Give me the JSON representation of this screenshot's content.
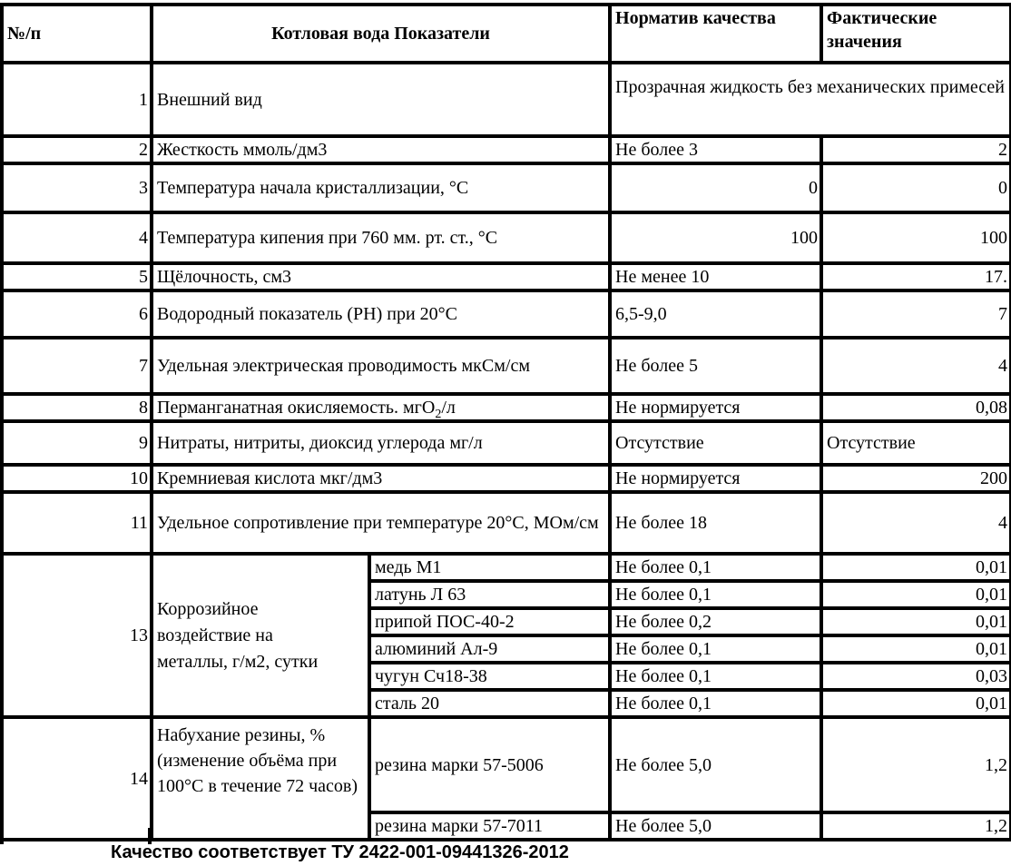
{
  "header": {
    "num": "№/п",
    "indicator": "Котловая вода   Показатели",
    "norm": "Норматив качества",
    "fact": "Фактические значения"
  },
  "rows": [
    {
      "num": "1",
      "name": "Внешний вид",
      "merged": "Прозрачная жидкость без механических примесей"
    },
    {
      "num": "2",
      "name": "Жесткость ммоль/дм3",
      "norm": "Не более 3",
      "fact": "2"
    },
    {
      "num": "3",
      "name": "Температура начала кристаллизации, °С",
      "norm": "0",
      "fact": "0"
    },
    {
      "num": "4",
      "name": "Температура кипения при 760 мм. рт. ст., °С",
      "norm": "100",
      "fact": "100"
    },
    {
      "num": "5",
      "name": "Щёлочность, см3",
      "norm": "Не менее 10",
      "fact": "17."
    },
    {
      "num": "6",
      "name": "Водородный показатель (РН) при 20°С",
      "norm": "6,5-9,0",
      "fact": "7"
    },
    {
      "num": "7",
      "name": "Удельная электрическая проводимость мкСм/см",
      "norm": "Не более 5",
      "fact": "4"
    },
    {
      "num": "8",
      "name": "Перманганатная окисляемость. мгO",
      "name_sub": "2",
      "name_tail": "/л",
      "norm": "Не нормируется",
      "fact": "0,08"
    },
    {
      "num": "9",
      "name": "Нитраты, нитриты, диоксид углерода мг/л",
      "norm": "Отсутствие",
      "fact": "Отсутствие"
    },
    {
      "num": "10",
      "name": "Кремниевая кислота мкг/дм3",
      "norm": "Не нормируется",
      "fact": "200"
    },
    {
      "num": "11",
      "name": "Удельное сопротивление при температуре 20°С, МОм/см",
      "norm": "Не более 18",
      "fact": "4"
    }
  ],
  "corrosion": {
    "num": "13",
    "name": "Коррозийное воздействие на металлы, г/м2, сутки",
    "items": [
      {
        "metal": "медь М1",
        "norm": "Не более 0,1",
        "fact": "0,01"
      },
      {
        "metal": "латунь Л 63",
        "norm": "Не более 0,1",
        "fact": "0,01"
      },
      {
        "metal": "припой ПОС-40-2",
        "norm": "Не более 0,2",
        "fact": "0,01"
      },
      {
        "metal": "алюминий Ал-9",
        "norm": "Не более 0,1",
        "fact": "0,01"
      },
      {
        "metal": "чугун Сч18-38",
        "norm": "Не более 0,1",
        "fact": "0,03"
      },
      {
        "metal": "сталь 20",
        "norm": "Не более 0,1",
        "fact": "0,01"
      }
    ]
  },
  "rubber": {
    "num": "14",
    "name": "Набухание резины, % (изменение объёма при 100°С в течение 72 часов)",
    "items": [
      {
        "grade": "резина марки 57-5006",
        "norm": "Не более 5,0",
        "fact": "1,2"
      },
      {
        "grade": "резина марки 57-7011",
        "norm": "Не более 5,0",
        "fact": "1,2"
      }
    ]
  },
  "footer": "Качество соответствует ТУ 2422-001-09441326-2012"
}
